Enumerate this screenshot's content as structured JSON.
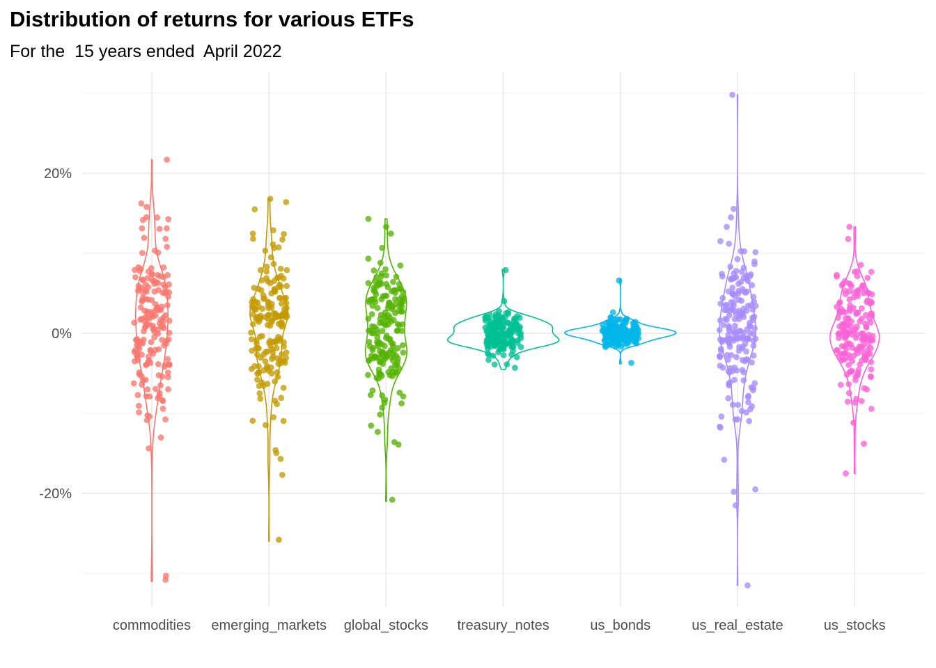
{
  "chart_data": {
    "type": "violin",
    "title": "Distribution of returns for various ETFs",
    "subtitle": "For the  15 years ended  April 2022",
    "xlabel": "",
    "ylabel": "",
    "ylim": [
      -34,
      31
    ],
    "y_ticks": [
      -20,
      0,
      20
    ],
    "y_tick_labels": [
      "-20%",
      "0%",
      "20%"
    ],
    "grid": true,
    "legend": "none",
    "categories": [
      "commodities",
      "emerging_markets",
      "global_stocks",
      "treasury_notes",
      "us_bonds",
      "us_real_estate",
      "us_stocks"
    ],
    "series": [
      {
        "category": "commodities",
        "color": "#F8766D",
        "min": -31,
        "max": 21.7,
        "sd": 7.5,
        "points_per_series": 180,
        "outliers": [
          -30.8,
          -30.3,
          21.7,
          15.8
        ]
      },
      {
        "category": "emerging_markets",
        "color": "#C49A00",
        "min": -26,
        "max": 16.8,
        "sd": 6.2,
        "points_per_series": 180,
        "outliers": [
          -25.8,
          -17.7,
          -15.7,
          -14.6,
          16.8,
          16.4,
          15.5
        ]
      },
      {
        "category": "global_stocks",
        "color": "#53B400",
        "min": -21,
        "max": 14.3,
        "sd": 5.6,
        "points_per_series": 180,
        "outliers": [
          -20.8,
          -13.9,
          -13.6,
          14.3,
          13.3
        ]
      },
      {
        "category": "treasury_notes",
        "color": "#00C094",
        "min": -4.5,
        "max": 8,
        "sd": 1.9,
        "points_per_series": 180,
        "outliers": [
          7.9,
          -4.3
        ]
      },
      {
        "category": "us_bonds",
        "color": "#00B6EB",
        "min": -3.8,
        "max": 6.8,
        "sd": 1.1,
        "points_per_series": 180,
        "outliers": [
          6.6,
          -3.7
        ]
      },
      {
        "category": "us_real_estate",
        "color": "#A58AFF",
        "min": -31.5,
        "max": 29.8,
        "sd": 6.6,
        "points_per_series": 180,
        "outliers": [
          29.8,
          -31.5,
          -21.5,
          -19.5,
          -19.8,
          -15.8,
          14.5,
          13.3
        ]
      },
      {
        "category": "us_stocks",
        "color": "#FB61D7",
        "min": -17.5,
        "max": 13.3,
        "sd": 4.6,
        "points_per_series": 180,
        "outliers": [
          -17.5,
          -13.8,
          13.3,
          11.8
        ]
      }
    ]
  }
}
